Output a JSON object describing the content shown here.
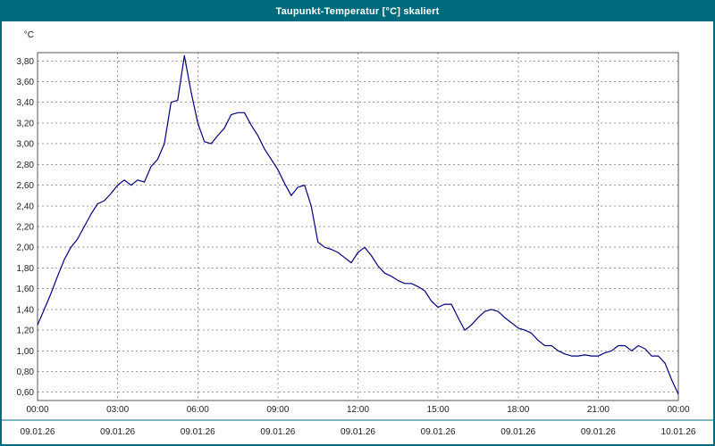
{
  "window": {
    "title": "Taupunkt-Temperatur [°C] skaliert"
  },
  "colors": {
    "frame": "#006b7d",
    "title_bg": "#006b7d",
    "title_text": "#ffffff",
    "plot_bg": "#ffffff",
    "grid": "#999999",
    "axis": "#555555",
    "label": "#1a1a1a",
    "line": "#00007f",
    "date_divider": "#006b7d"
  },
  "chart_data": {
    "type": "line",
    "title": "Taupunkt-Temperatur [°C] skaliert",
    "y_unit_label": "°C",
    "ylim": [
      0.52,
      3.88
    ],
    "grid": "dashed",
    "y_ticks": [
      {
        "value": 3.8,
        "label": "3,80"
      },
      {
        "value": 3.6,
        "label": "3,60"
      },
      {
        "value": 3.4,
        "label": "3,40"
      },
      {
        "value": 3.2,
        "label": "3,20"
      },
      {
        "value": 3.0,
        "label": "3,00"
      },
      {
        "value": 2.8,
        "label": "2,80"
      },
      {
        "value": 2.6,
        "label": "2,60"
      },
      {
        "value": 2.4,
        "label": "2,40"
      },
      {
        "value": 2.2,
        "label": "2,20"
      },
      {
        "value": 2.0,
        "label": "2,00"
      },
      {
        "value": 1.8,
        "label": "1,80"
      },
      {
        "value": 1.6,
        "label": "1,60"
      },
      {
        "value": 1.4,
        "label": "1,40"
      },
      {
        "value": 1.2,
        "label": "1,20"
      },
      {
        "value": 1.0,
        "label": "1,00"
      },
      {
        "value": 0.8,
        "label": "0,80"
      },
      {
        "value": 0.6,
        "label": "0,60"
      }
    ],
    "x_ticks": [
      {
        "hour": 0,
        "time": "00:00",
        "date": "09.01.26"
      },
      {
        "hour": 3,
        "time": "03:00",
        "date": "09.01.26"
      },
      {
        "hour": 6,
        "time": "06:00",
        "date": "09.01.26"
      },
      {
        "hour": 9,
        "time": "09:00",
        "date": "09.01.26"
      },
      {
        "hour": 12,
        "time": "12:00",
        "date": "09.01.26"
      },
      {
        "hour": 15,
        "time": "15:00",
        "date": "09.01.26"
      },
      {
        "hour": 18,
        "time": "18:00",
        "date": "09.01.26"
      },
      {
        "hour": 21,
        "time": "21:00",
        "date": "09.01.26"
      },
      {
        "hour": 24,
        "time": "00:00",
        "date": "10.01.26"
      }
    ],
    "xlim_hours": [
      0,
      24
    ],
    "series": [
      {
        "name": "Taupunkt-Temperatur",
        "x_start_hour": 0,
        "x_step_hours": 0.25,
        "values": [
          1.25,
          1.4,
          1.55,
          1.72,
          1.88,
          2.0,
          2.08,
          2.2,
          2.32,
          2.42,
          2.45,
          2.52,
          2.6,
          2.65,
          2.6,
          2.65,
          2.63,
          2.78,
          2.85,
          3.0,
          3.4,
          3.42,
          3.85,
          3.5,
          3.2,
          3.02,
          3.0,
          3.08,
          3.15,
          3.28,
          3.3,
          3.3,
          3.18,
          3.08,
          2.95,
          2.85,
          2.75,
          2.62,
          2.5,
          2.58,
          2.6,
          2.4,
          2.05,
          2.0,
          1.98,
          1.95,
          1.9,
          1.85,
          1.95,
          2.0,
          1.92,
          1.82,
          1.75,
          1.72,
          1.68,
          1.65,
          1.65,
          1.62,
          1.58,
          1.48,
          1.42,
          1.45,
          1.45,
          1.32,
          1.2,
          1.25,
          1.32,
          1.38,
          1.4,
          1.38,
          1.32,
          1.27,
          1.22,
          1.2,
          1.17,
          1.1,
          1.05,
          1.05,
          1.0,
          0.97,
          0.95,
          0.95,
          0.96,
          0.95,
          0.95,
          0.98,
          1.0,
          1.05,
          1.05,
          1.0,
          1.05,
          1.02,
          0.95,
          0.95,
          0.88,
          0.72,
          0.58
        ]
      }
    ]
  }
}
